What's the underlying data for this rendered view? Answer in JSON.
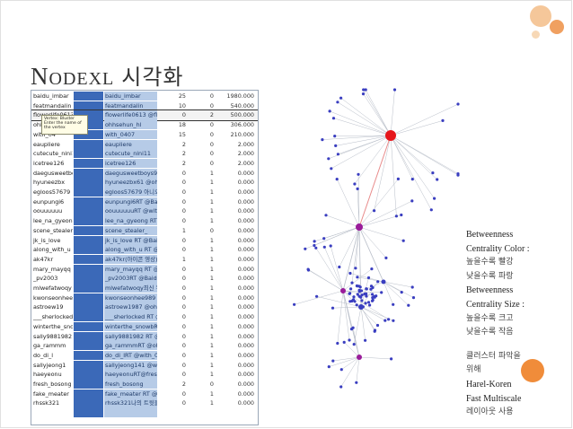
{
  "slide": {
    "title_cap": "N",
    "title_small": "ODEXL",
    "title_korean": "시각화"
  },
  "table": {
    "rows": [
      {
        "c1": "baidu_imbar",
        "c2": "",
        "c3": "baidu_imbar",
        "c4": "25",
        "c5": "0",
        "c6": "1980.000"
      },
      {
        "c1": "featmandalin",
        "c2": "",
        "c3": "featmandalin",
        "c4": "10",
        "c5": "0",
        "c6": "540.000"
      },
      {
        "c1": "flowerlife0613",
        "c2": "",
        "c3": "flowerlife0613  @fle",
        "c4": "0",
        "c5": "2",
        "c6": "500.000"
      },
      {
        "c1": "ohhsehun",
        "c2": "",
        "c3": "ohhsehun_hl",
        "c4": "18",
        "c5": "0",
        "c6": "306.000"
      },
      {
        "c1": "with_04",
        "c2": "",
        "c3": "with_0407",
        "c4": "15",
        "c5": "0",
        "c6": "210.000"
      },
      {
        "c1": "eaupliere",
        "c2": "",
        "c3": "eaupliere",
        "c4": "2",
        "c5": "0",
        "c6": "2.000"
      },
      {
        "c1": "cutecute_nini11",
        "c2": "",
        "c3": "cutecute_nini11",
        "c4": "2",
        "c5": "0",
        "c6": "2.000"
      },
      {
        "c1": "icetree126",
        "c2": "",
        "c3": "icetree126",
        "c4": "2",
        "c5": "0",
        "c6": "2.000"
      },
      {
        "c1": "daegusweetboys",
        "c2": "",
        "c3": "daegusweetboys97 @",
        "c4": "0",
        "c5": "1",
        "c6": "0.000"
      },
      {
        "c1": "hyuneezbx",
        "c2": "",
        "c3": "hyuneezbx61 @ohhse",
        "c4": "0",
        "c5": "1",
        "c6": "0.000"
      },
      {
        "c1": "egloos57679",
        "c2": "",
        "c3": "egloos57679 아니오 부",
        "c4": "0",
        "c5": "1",
        "c6": "0.000"
      },
      {
        "c1": "eunpungi6",
        "c2": "",
        "c3": "eunpungi6RT @Baidu",
        "c4": "0",
        "c5": "1",
        "c6": "0.000"
      },
      {
        "c1": "oouuuuuu",
        "c2": "",
        "c3": "oouuuuuuRT @with_",
        "c4": "0",
        "c5": "1",
        "c6": "0.000"
      },
      {
        "c1": "lee_na_gyeong",
        "c2": "",
        "c3": "lee_na_gyeong RT @ba",
        "c4": "0",
        "c5": "1",
        "c6": "0.000"
      },
      {
        "c1": "scene_stealer_",
        "c2": "",
        "c3": "scene_stealer_",
        "c4": "1",
        "c5": "0",
        "c6": "0.000"
      },
      {
        "c1": "jk_is_love",
        "c2": "",
        "c3": "jk_is_love RT @Baidu",
        "c4": "0",
        "c5": "1",
        "c6": "0.000"
      },
      {
        "c1": "along_with_u",
        "c2": "",
        "c3": "along_with_u RT @wit",
        "c4": "0",
        "c5": "1",
        "c6": "0.000"
      },
      {
        "c1": "ak47kr",
        "c2": "",
        "c3": "ak47kr(아이콘 영상)",
        "c4": "1",
        "c5": "1",
        "c6": "0.000"
      },
      {
        "c1": "mary_mayqq",
        "c2": "",
        "c3": "mary_mayqq RT @Baid",
        "c4": "0",
        "c5": "1",
        "c6": "0.000"
      },
      {
        "c1": "_pv2003",
        "c2": "",
        "c3": "_pv2003RT @Baidu_ll",
        "c4": "0",
        "c5": "1",
        "c6": "0.000"
      },
      {
        "c1": "mlwefatwoqy",
        "c2": "",
        "c3": "mlwefatwoqy최신 뉴스",
        "c4": "0",
        "c5": "1",
        "c6": "0.000"
      },
      {
        "c1": "kwonseonhee989",
        "c2": "",
        "c3": "kwonseonhee989 RT @",
        "c4": "0",
        "c5": "1",
        "c6": "0.000"
      },
      {
        "c1": "astroew19",
        "c2": "",
        "c3": "astroew1987 @ohhse",
        "c4": "0",
        "c5": "1",
        "c6": "0.000"
      },
      {
        "c1": "___sherlocked",
        "c2": "",
        "c3": "___sherlocked RT @b",
        "c4": "0",
        "c5": "1",
        "c6": "0.000"
      },
      {
        "c1": "winterthe_snowb",
        "c2": "",
        "c3": "winterthe_snowbRT @",
        "c4": "0",
        "c5": "1",
        "c6": "0.000"
      },
      {
        "c1": "sally9881982",
        "c2": "",
        "c3": "sally9881982 RT @wi",
        "c4": "0",
        "c5": "1",
        "c6": "0.000"
      },
      {
        "c1": "ga_rammm",
        "c2": "",
        "c3": "ga_rammmRT @ohhse",
        "c4": "0",
        "c5": "1",
        "c6": "0.000"
      },
      {
        "c1": "do_di_l",
        "c2": "",
        "c3": "do_di_lRT @with_04",
        "c4": "0",
        "c5": "1",
        "c6": "0.000"
      },
      {
        "c1": "sallyjeong1",
        "c2": "",
        "c3": "sallyjeong141 @with",
        "c4": "0",
        "c5": "1",
        "c6": "0.000"
      },
      {
        "c1": "haeyeonu",
        "c2": "",
        "c3": "haeyeonuRT@fresh_bo",
        "c4": "0",
        "c5": "1",
        "c6": "0.000"
      },
      {
        "c1": "fresh_bosong",
        "c2": "",
        "c3": "fresh_bosong",
        "c4": "2",
        "c5": "0",
        "c6": "0.000"
      },
      {
        "c1": "fake_meater",
        "c2": "",
        "c3": "fake_meater RT @eau",
        "c4": "0",
        "c5": "1",
        "c6": "0.000"
      },
      {
        "c1": "rhssk321",
        "c2": "",
        "c3": "rhssk321나의 트윗들",
        "c4": "0",
        "c5": "1",
        "c6": "0.000"
      },
      {
        "c1": "",
        "c2": "",
        "c3": "",
        "c4": "",
        "c5": "",
        "c6": ""
      }
    ],
    "tooltip": [
      "Vertex: Bluster",
      "Enter the name of",
      "the vertex"
    ]
  },
  "legend": {
    "lines": [
      "Betweenness",
      "Centrality Color :",
      "높을수록 빨강",
      "낮을수록 파랑",
      "Betweenness",
      "Centrality Size :",
      "높을수록 크고",
      "낮을수록 작음",
      "",
      "클러스터 파악을",
      "위해",
      "Harel-Koren",
      "Fast Multiscale",
      "레이아웃 사용"
    ]
  },
  "colors": {
    "header_cell": "#3b69b8",
    "name_cell": "#b6cbe7",
    "edge": "#b8bec8",
    "central_node": "#e6161b",
    "mid_node": "#9a1c9a",
    "low_node": "#3a3ec0",
    "accent_circle": "#f08c3a"
  }
}
